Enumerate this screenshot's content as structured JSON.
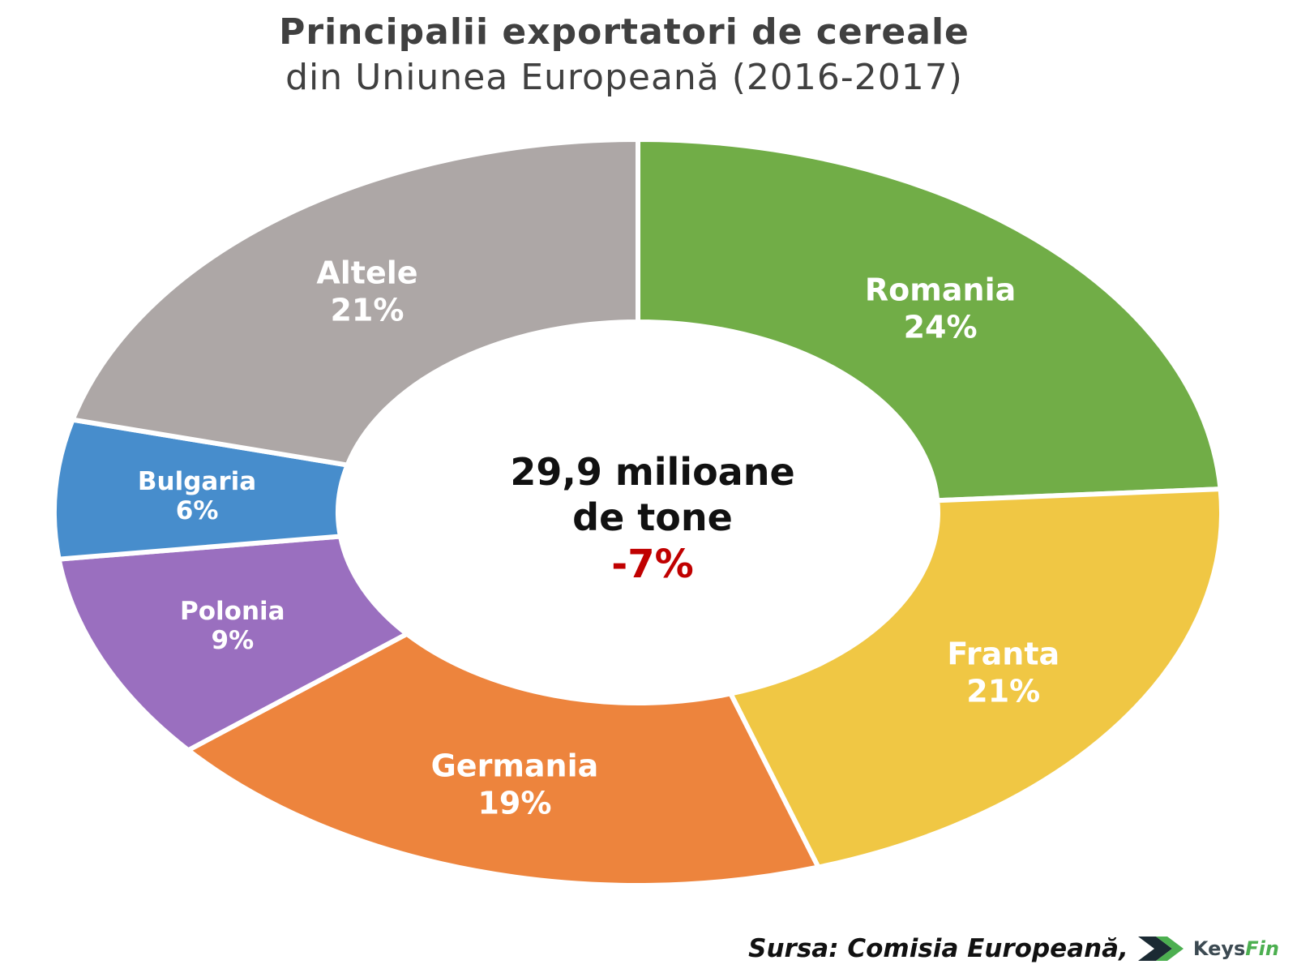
{
  "title": {
    "line1": "Principalii exportatori de cereale",
    "line2": "din Uniunea Europeană (2016-2017)"
  },
  "center": {
    "line1": "29,9 milioane",
    "line2": "de tone",
    "change": "-7%",
    "change_color": "#c00000"
  },
  "source": "Sursa: Comisia Europeană,",
  "logo": {
    "text_main": "Keys",
    "text_accent": "Fin",
    "arrow_color": "#1b2a33",
    "accent_color": "#4caf50"
  },
  "chart_data": {
    "type": "pie",
    "variant": "donut",
    "unit": "%",
    "slices": [
      {
        "label": "Romania",
        "value": 24,
        "value_label": "24%",
        "color": "#71ad47"
      },
      {
        "label": "Franta",
        "value": 21,
        "value_label": "21%",
        "color": "#f0c744"
      },
      {
        "label": "Germania",
        "value": 19,
        "value_label": "19%",
        "color": "#ed843d"
      },
      {
        "label": "Polonia",
        "value": 9,
        "value_label": "9%",
        "color": "#9a6fbf"
      },
      {
        "label": "Bulgaria",
        "value": 6,
        "value_label": "6%",
        "color": "#478dcc"
      },
      {
        "label": "Altele",
        "value": 21,
        "value_label": "21%",
        "color": "#ada7a6"
      }
    ]
  }
}
